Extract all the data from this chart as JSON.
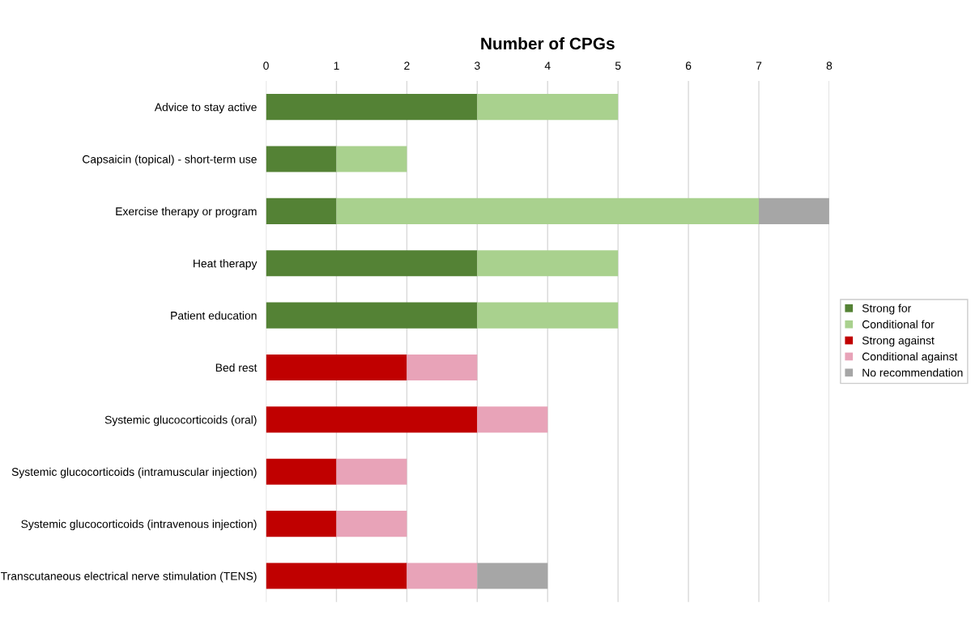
{
  "chart_data": {
    "type": "bar",
    "orientation": "horizontal",
    "stacked": true,
    "title": "Number of CPGs",
    "categories": [
      "Advice to stay active",
      "Capsaicin (topical) - short-term use",
      "Exercise therapy or program",
      "Heat therapy",
      "Patient education",
      "Bed rest",
      "Systemic glucocorticoids (oral)",
      "Systemic glucocorticoids (intramuscular injection)",
      "Systemic glucocorticoids (intravenous injection)",
      "Transcutaneous electrical nerve stimulation (TENS)"
    ],
    "series": [
      {
        "name": "Strong for",
        "color": "#548235",
        "values": [
          3,
          1,
          1,
          3,
          3,
          null,
          null,
          null,
          null,
          null
        ]
      },
      {
        "name": "Conditional for",
        "color": "#a9d18e",
        "values": [
          2,
          1,
          6,
          2,
          2,
          null,
          null,
          null,
          null,
          null
        ]
      },
      {
        "name": "Strong against",
        "color": "#c00000",
        "values": [
          null,
          null,
          null,
          null,
          null,
          2,
          3,
          1,
          1,
          2
        ]
      },
      {
        "name": "Conditional against",
        "color": "#e8a3b8",
        "values": [
          null,
          null,
          null,
          null,
          null,
          1,
          1,
          1,
          1,
          1
        ]
      },
      {
        "name": "No recommendation",
        "color": "#a6a6a6",
        "values": [
          null,
          null,
          1,
          null,
          null,
          null,
          null,
          null,
          null,
          1
        ]
      }
    ],
    "xlim": [
      0,
      8
    ],
    "xticks": [
      0,
      1,
      2,
      3,
      4,
      5,
      6,
      7,
      8
    ],
    "grid": "x",
    "legend": "right"
  }
}
